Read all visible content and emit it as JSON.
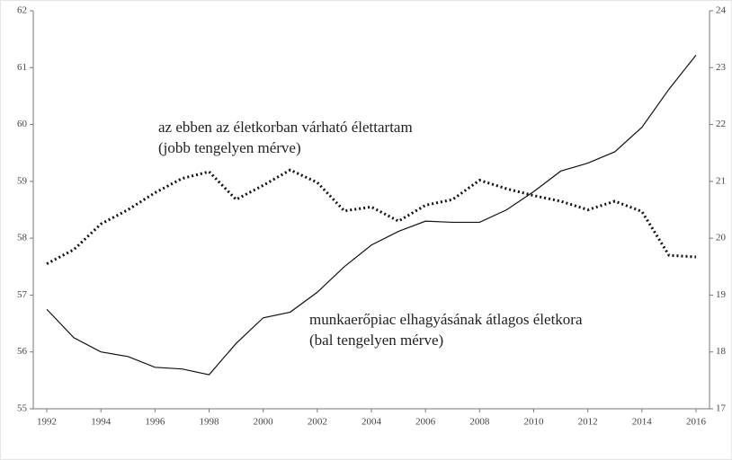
{
  "chart_data": {
    "type": "line",
    "x": [
      1992,
      1993,
      1994,
      1995,
      1996,
      1997,
      1998,
      1999,
      2000,
      2001,
      2002,
      2003,
      2004,
      2005,
      2006,
      2007,
      2008,
      2009,
      2010,
      2011,
      2012,
      2013,
      2014,
      2015,
      2016
    ],
    "series": [
      {
        "color": "#111111",
        "style": "solid",
        "axis": "y",
        "values": [
          56.75,
          56.25,
          56.0,
          55.92,
          55.73,
          55.7,
          55.6,
          56.15,
          56.6,
          56.7,
          57.05,
          57.5,
          57.88,
          58.12,
          58.3,
          58.28,
          58.28,
          58.5,
          58.82,
          59.18,
          59.32,
          59.52,
          59.95,
          60.62,
          61.22
        ]
      },
      {
        "color": "#111111",
        "style": "dotted",
        "axis": "y2",
        "values": [
          19.55,
          19.8,
          20.25,
          20.5,
          20.8,
          21.05,
          21.17,
          20.68,
          20.93,
          21.2,
          20.98,
          20.48,
          20.55,
          20.3,
          20.58,
          20.68,
          21.02,
          20.87,
          20.75,
          20.65,
          20.5,
          20.65,
          20.47,
          19.7,
          19.67
        ]
      }
    ],
    "annotations": [
      {
        "lines": [
          "az ebben az életkorban várható élettartam",
          "(jobb tengelyen mérve)"
        ]
      },
      {
        "lines": [
          "munkaerőpiac elhagyásának átlagos életkora",
          "(bal tengelyen mérve)"
        ]
      }
    ],
    "xlim": [
      1991.5,
      2016.5
    ],
    "xticks": [
      1992,
      1994,
      1996,
      1998,
      2000,
      2002,
      2004,
      2006,
      2008,
      2010,
      2012,
      2014,
      2016
    ],
    "ylim": [
      55,
      62
    ],
    "yticks": [
      55,
      56,
      57,
      58,
      59,
      60,
      61,
      62
    ],
    "y2lim": [
      17,
      24
    ],
    "y2ticks": [
      17,
      18,
      19,
      20,
      21,
      22,
      23,
      24
    ]
  }
}
